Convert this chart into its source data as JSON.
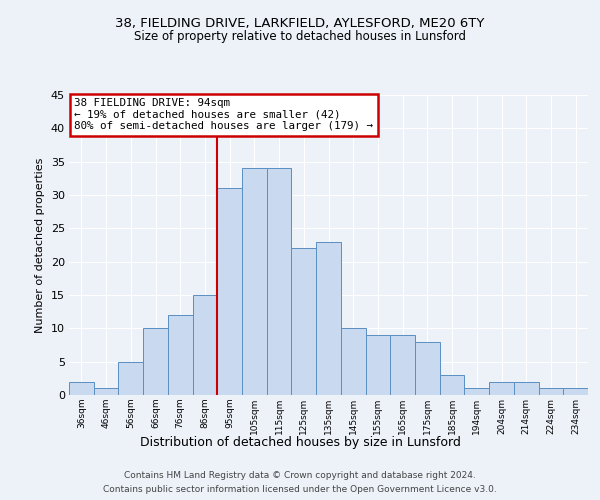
{
  "title1": "38, FIELDING DRIVE, LARKFIELD, AYLESFORD, ME20 6TY",
  "title2": "Size of property relative to detached houses in Lunsford",
  "xlabel": "Distribution of detached houses by size in Lunsford",
  "ylabel": "Number of detached properties",
  "bar_labels": [
    "36sqm",
    "46sqm",
    "56sqm",
    "66sqm",
    "76sqm",
    "86sqm",
    "95sqm",
    "105sqm",
    "115sqm",
    "125sqm",
    "135sqm",
    "145sqm",
    "155sqm",
    "165sqm",
    "175sqm",
    "185sqm",
    "194sqm",
    "204sqm",
    "214sqm",
    "224sqm",
    "234sqm"
  ],
  "bar_values": [
    2,
    1,
    5,
    10,
    12,
    15,
    31,
    34,
    34,
    22,
    23,
    10,
    9,
    9,
    8,
    3,
    1,
    2,
    2,
    1,
    1
  ],
  "bar_color": "#c9d9f0",
  "bar_edgecolor": "#5a8fc2",
  "vline_color": "#cc0000",
  "annotation_title": "38 FIELDING DRIVE: 94sqm",
  "annotation_line2": "← 19% of detached houses are smaller (42)",
  "annotation_line3": "80% of semi-detached houses are larger (179) →",
  "annotation_box_color": "#cc0000",
  "ylim": [
    0,
    45
  ],
  "yticks": [
    0,
    5,
    10,
    15,
    20,
    25,
    30,
    35,
    40,
    45
  ],
  "footnote1": "Contains HM Land Registry data © Crown copyright and database right 2024.",
  "footnote2": "Contains public sector information licensed under the Open Government Licence v3.0.",
  "bg_color": "#edf2f9",
  "plot_bg_color": "#edf2f9"
}
